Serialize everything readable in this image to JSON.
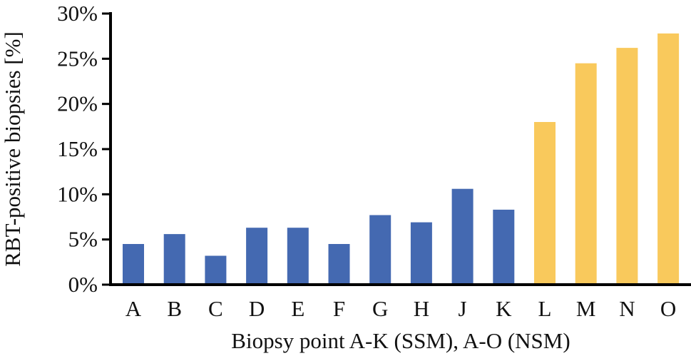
{
  "chart_data": {
    "type": "bar",
    "xlabel": "Biopsy point A-K (SSM), A-O (NSM)",
    "ylabel": "RBT-positive biopsies [%]",
    "ylim": [
      0,
      30
    ],
    "yticks": [
      0,
      5,
      10,
      15,
      20,
      25,
      30
    ],
    "ytick_labels": [
      "0%",
      "5%",
      "10%",
      "15%",
      "20%",
      "25%",
      "30%"
    ],
    "grid": false,
    "legend": "none",
    "categories": [
      "A",
      "B",
      "C",
      "D",
      "E",
      "F",
      "G",
      "H",
      "J",
      "K",
      "L",
      "M",
      "N",
      "O"
    ],
    "values": [
      4.5,
      5.6,
      3.2,
      6.3,
      6.3,
      4.5,
      7.7,
      6.9,
      10.6,
      8.3,
      18.0,
      24.5,
      26.2,
      27.8
    ],
    "bar_colors": [
      "#4469B1",
      "#4469B1",
      "#4469B1",
      "#4469B1",
      "#4469B1",
      "#4469B1",
      "#4469B1",
      "#4469B1",
      "#4469B1",
      "#4469B1",
      "#F9C95C",
      "#F9C95C",
      "#F9C95C",
      "#F9C95C"
    ]
  }
}
